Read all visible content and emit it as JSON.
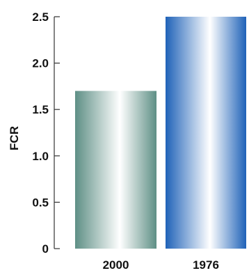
{
  "chart_data": {
    "type": "bar",
    "title": "",
    "xlabel": "",
    "ylabel": "FCR",
    "categories": [
      "2000",
      "1976"
    ],
    "values": [
      1.7,
      2.5
    ],
    "ylim": [
      0,
      2.5
    ],
    "yticks": [
      0,
      0.5,
      1.0,
      1.5,
      2.0,
      2.5
    ],
    "ytick_labels": [
      "0",
      "0.5",
      "1.0",
      "1.5",
      "2.0",
      "2.5"
    ],
    "grid": false,
    "colors": {
      "bars": [
        "#5e8f85",
        "#1f62b8"
      ],
      "axis": "#333333",
      "text": "#111111"
    }
  }
}
